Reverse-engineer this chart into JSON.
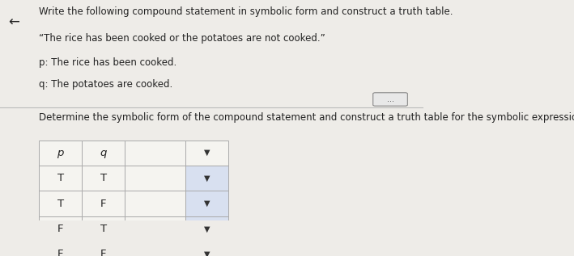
{
  "title_line1": "Write the following compound statement in symbolic form and construct a truth table.",
  "quote_text": "“The rice has been cooked or the potatoes are not cooked.”",
  "p_def": "p: The rice has been cooked.",
  "q_def": "q: The potatoes are cooked.",
  "instruction": "Determine the symbolic form of the compound statement and construct a truth table for the symbolic expression.",
  "col_headers": [
    "p",
    "q",
    "",
    "▼"
  ],
  "rows": [
    [
      "T",
      "T",
      "",
      "▼"
    ],
    [
      "T",
      "F",
      "",
      "▼"
    ],
    [
      "F",
      "T",
      "",
      "▼"
    ],
    [
      "F",
      "F",
      "",
      "▼"
    ]
  ],
  "bg_color": "#eeece8",
  "table_bg": "#f5f4f0",
  "header_bg": "#f5f4f0",
  "dropdown_bg": "#d8e0f0",
  "border_color": "#aaaaaa",
  "text_color": "#222222",
  "font_size_title": 8.5,
  "font_size_table": 9.5,
  "dots_label": "..."
}
